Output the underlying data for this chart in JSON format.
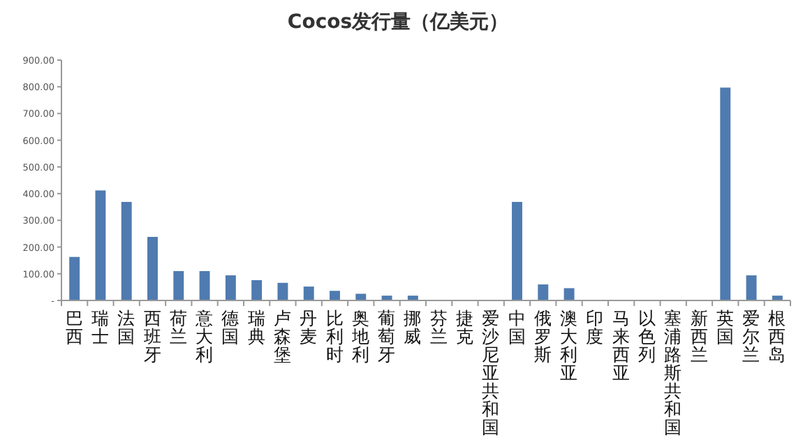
{
  "chart_data": {
    "type": "bar",
    "title": "Cocos发行量（亿美元）",
    "categories": [
      "巴西",
      "瑞士",
      "法国",
      "西班牙",
      "荷兰",
      "意大利",
      "德国",
      "瑞典",
      "卢森堡",
      "丹麦",
      "比利时",
      "奥地利",
      "葡萄牙",
      "挪威",
      "芬兰",
      "捷克",
      "爱沙尼亚共和国",
      "中国",
      "俄罗斯",
      "澳大利亚",
      "印度",
      "马来西亚",
      "以色列",
      "塞浦路斯共和国",
      "新西兰",
      "英国",
      "爱尔兰",
      "根西岛"
    ],
    "values": [
      163,
      412,
      369,
      238,
      110,
      110,
      94,
      76,
      66,
      52,
      36,
      25,
      18,
      18,
      0,
      0,
      0,
      369,
      60,
      46,
      0,
      0,
      0,
      0,
      0,
      797,
      94,
      18
    ],
    "color": "#4f7bb0",
    "ylim": [
      0,
      900
    ],
    "yticks": [
      {
        "value": 0,
        "label": "-"
      },
      {
        "value": 100,
        "label": "100.00"
      },
      {
        "value": 200,
        "label": "200.00"
      },
      {
        "value": 300,
        "label": "300.00"
      },
      {
        "value": 400,
        "label": "400.00"
      },
      {
        "value": 500,
        "label": "500.00"
      },
      {
        "value": 600,
        "label": "600.00"
      },
      {
        "value": 700,
        "label": "700.00"
      },
      {
        "value": 800,
        "label": "800.00"
      },
      {
        "value": 900,
        "label": "900.00"
      }
    ],
    "grid": false
  }
}
